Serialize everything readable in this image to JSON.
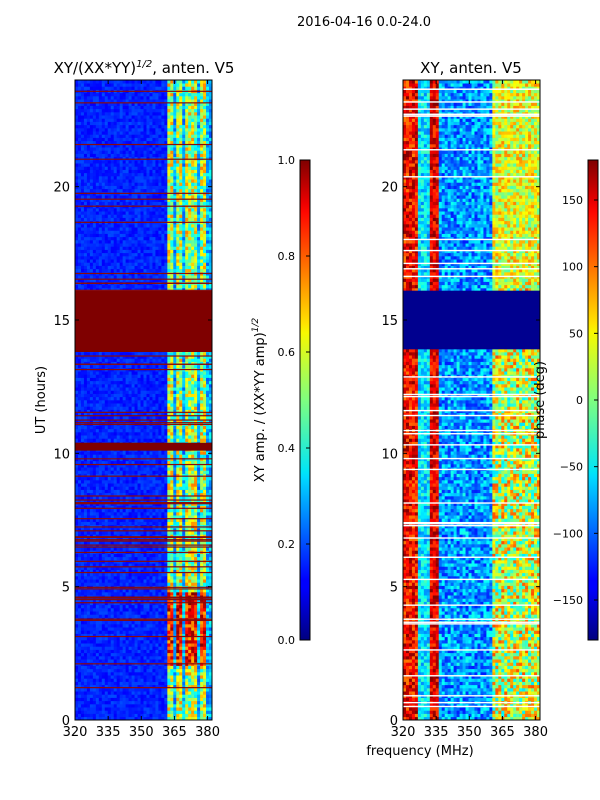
{
  "figure": {
    "suptitle": "2016-04-16 0.0-24.0",
    "xlabel": "frequency (MHz)"
  },
  "chart_data": [
    {
      "type": "heatmap",
      "title_main": "XY/(XX*YY)",
      "title_sup": "1/2",
      "title_tail": ", anten. V5",
      "xlabel": "",
      "ylabel": "UT (hours)",
      "xlim": [
        320,
        382
      ],
      "ylim": [
        0,
        24
      ],
      "xticks": [
        320,
        335,
        350,
        365,
        380
      ],
      "yticks": [
        0,
        5,
        10,
        15,
        20
      ],
      "colorbar": {
        "label_main": "XY amp. / (XX*YY amp)",
        "label_sup": "1/2",
        "range": [
          0.0,
          1.0
        ],
        "ticks": [
          "0.0",
          "0.2",
          "0.4",
          "0.6",
          "0.8",
          "1.0"
        ]
      },
      "saturated_hour_bands": [
        [
          13.8,
          16.1
        ],
        [
          10.1,
          10.4
        ]
      ],
      "bright_channel_mhz": [
        363,
        367,
        371,
        374,
        378
      ]
    },
    {
      "type": "heatmap",
      "title_main": "XY, anten. V5",
      "xlabel": "",
      "ylabel": "",
      "xlim": [
        320,
        382
      ],
      "ylim": [
        0,
        24
      ],
      "xticks": [
        320,
        335,
        350,
        365,
        380
      ],
      "yticks": [
        0,
        5,
        10,
        15,
        20
      ],
      "colorbar": {
        "label_main": "phase (deg)",
        "range": [
          -180,
          180
        ],
        "ticks": [
          "150",
          "100",
          "50",
          "0",
          "−50",
          "−100",
          "−150"
        ]
      },
      "flagged_hour_band": [
        13.9,
        16.1
      ]
    }
  ],
  "colors": {
    "jet_low": "#00007f",
    "jet_mid": "#7fff7f",
    "jet_high": "#7f0000"
  }
}
